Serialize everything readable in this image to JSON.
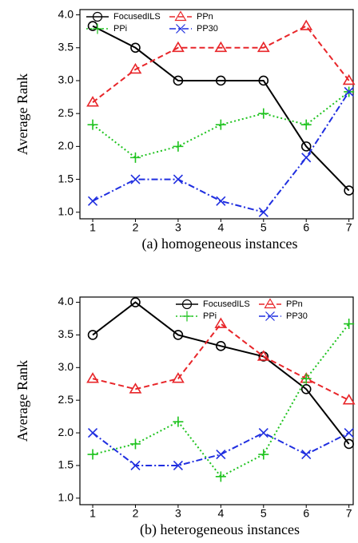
{
  "chart_data": [
    {
      "type": "line",
      "caption": "(a) homogeneous instances",
      "ylabel": "Average Rank",
      "x": [
        1,
        2,
        3,
        4,
        5,
        6,
        7
      ],
      "xlim": [
        0.7,
        7.1
      ],
      "xticks": [
        1,
        2,
        3,
        4,
        5,
        6,
        7
      ],
      "ylim": [
        0.9,
        4.08
      ],
      "yticks": [
        {
          "value": 1,
          "label": "1.0"
        },
        1.5,
        {
          "value": 2,
          "label": "2.0"
        },
        2.5,
        {
          "value": 3,
          "label": "3.0"
        },
        3.5,
        {
          "value": 4,
          "label": "4.0"
        }
      ],
      "legend": "top-left",
      "series": [
        {
          "name": "FocusedILS",
          "color": "#000000",
          "linestyle": "solid",
          "marker": "circle",
          "values": [
            3.83,
            3.5,
            3.0,
            3.0,
            3.0,
            2.0,
            1.33
          ]
        },
        {
          "name": "PPn",
          "color": "#e8262a",
          "linestyle": "dashed",
          "marker": "triangle",
          "values": [
            2.67,
            3.17,
            3.5,
            3.5,
            3.5,
            3.83,
            3.0
          ]
        },
        {
          "name": "PPi",
          "color": "#1fc31f",
          "linestyle": "dotted",
          "marker": "plus",
          "values": [
            2.33,
            1.83,
            2.0,
            2.33,
            2.5,
            2.33,
            2.83
          ]
        },
        {
          "name": "PP30",
          "color": "#1f2ee0",
          "linestyle": "dashdot",
          "marker": "x",
          "values": [
            1.17,
            1.5,
            1.5,
            1.17,
            1.0,
            1.83,
            2.83
          ]
        }
      ]
    },
    {
      "type": "line",
      "caption": "(b) heterogeneous instances",
      "ylabel": "Average Rank",
      "x": [
        1,
        2,
        3,
        4,
        5,
        6,
        7
      ],
      "xlim": [
        0.7,
        7.1
      ],
      "xticks": [
        1,
        2,
        3,
        4,
        5,
        6,
        7
      ],
      "ylim": [
        0.9,
        4.08
      ],
      "yticks": [
        {
          "value": 1,
          "label": "1.0"
        },
        1.5,
        {
          "value": 2,
          "label": "2.0"
        },
        2.5,
        {
          "value": 3,
          "label": "3.0"
        },
        3.5,
        {
          "value": 4,
          "label": "4.0"
        }
      ],
      "legend": "top-right",
      "series": [
        {
          "name": "FocusedILS",
          "color": "#000000",
          "linestyle": "solid",
          "marker": "circle",
          "values": [
            3.5,
            4.0,
            3.5,
            3.33,
            3.17,
            2.67,
            1.83
          ]
        },
        {
          "name": "PPn",
          "color": "#e8262a",
          "linestyle": "dashed",
          "marker": "triangle",
          "values": [
            2.83,
            2.67,
            2.83,
            3.67,
            3.17,
            2.83,
            2.5
          ]
        },
        {
          "name": "PPi",
          "color": "#1fc31f",
          "linestyle": "dotted",
          "marker": "plus",
          "values": [
            1.67,
            1.83,
            2.17,
            1.33,
            1.67,
            2.83,
            3.67
          ]
        },
        {
          "name": "PP30",
          "color": "#1f2ee0",
          "linestyle": "dashdot",
          "marker": "x",
          "values": [
            2.0,
            1.5,
            1.5,
            1.67,
            2.0,
            1.67,
            2.0
          ]
        }
      ]
    }
  ]
}
